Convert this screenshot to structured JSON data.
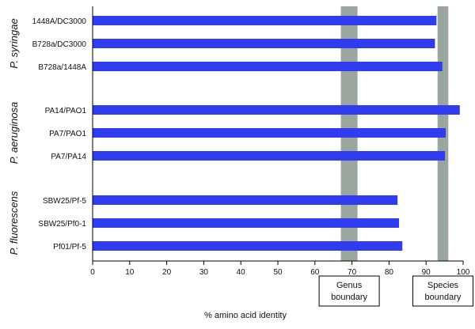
{
  "chart_data": {
    "type": "bar",
    "orientation": "horizontal",
    "categories": [
      "1448A/DC3000",
      "B728a/DC3000",
      "B728a/1448A",
      "PA14/PAO1",
      "PA7/PAO1",
      "PA7/PA14",
      "SBW25/Pf-5",
      "SBW25/Pf0-1",
      "Pf01/Pf-5"
    ],
    "values": [
      92.8,
      92.4,
      94.4,
      99.1,
      95.3,
      95.1,
      82.3,
      82.7,
      83.6
    ],
    "groups": [
      {
        "name": "P. syringae",
        "categories": [
          "1448A/DC3000",
          "B728a/DC3000",
          "B728a/1448A"
        ]
      },
      {
        "name": "P. aeruginosa",
        "categories": [
          "PA14/PAO1",
          "PA7/PAO1",
          "PA7/PA14"
        ]
      },
      {
        "name": "P. fluorescens",
        "categories": [
          "SBW25/Pf-5",
          "SBW25/Pf0-1",
          "Pf01/Pf-5"
        ]
      }
    ],
    "xlabel": "% amino acid identity",
    "xlim": [
      0,
      100
    ],
    "xticks": [
      0,
      10,
      20,
      30,
      40,
      50,
      60,
      70,
      80,
      90,
      100
    ],
    "bands": [
      {
        "range": [
          67,
          71.5
        ],
        "label_line1": "Genus",
        "label_line2": "boundary"
      },
      {
        "range": [
          93.1,
          96
        ],
        "label_line1": "Species",
        "label_line2": "boundary"
      }
    ],
    "bar_color": "#2f3cf0",
    "band_color": "#9ba69e",
    "grid": false
  }
}
